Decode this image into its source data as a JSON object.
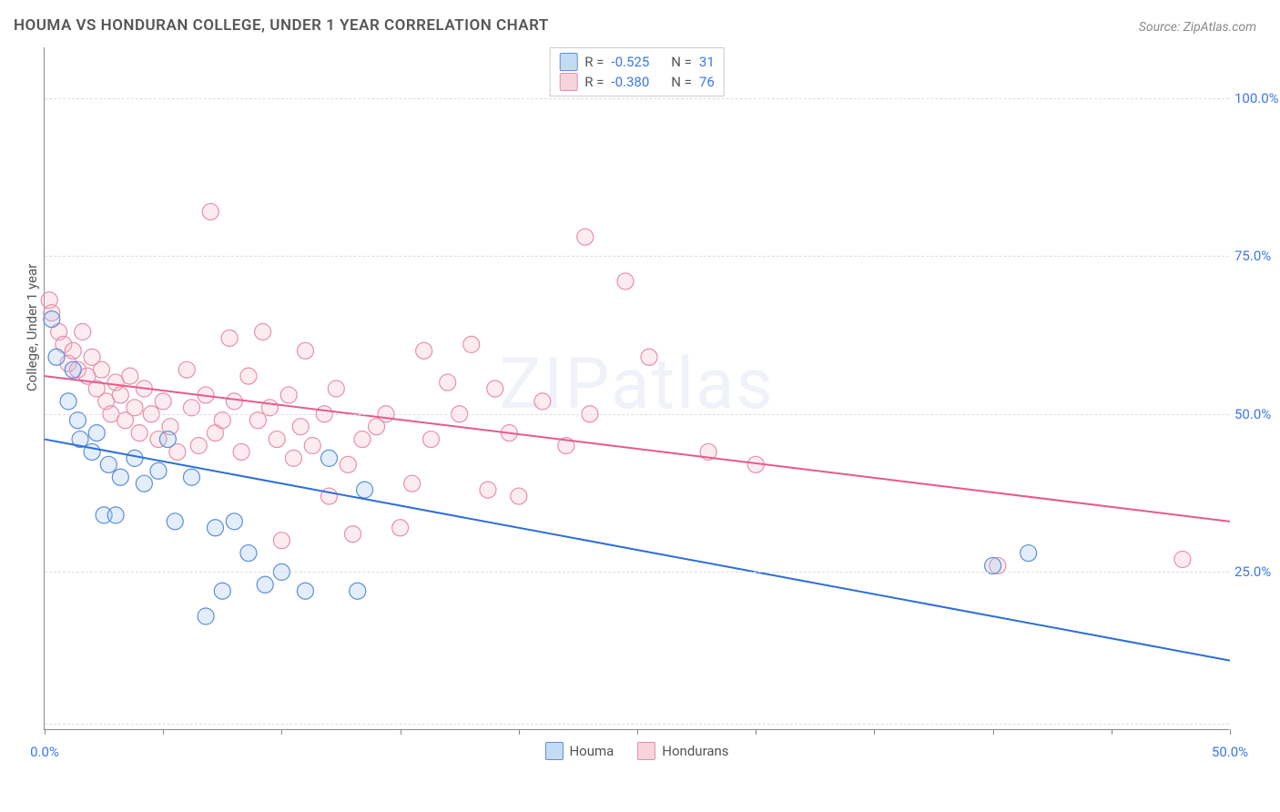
{
  "title": "HOUMA VS HONDURAN COLLEGE, UNDER 1 YEAR CORRELATION CHART",
  "source": "Source: ZipAtlas.com",
  "watermark": "ZIPatlas",
  "chart": {
    "type": "scatter",
    "y_axis_label": "College, Under 1 year",
    "xlim": [
      0,
      50
    ],
    "ylim": [
      0,
      108
    ],
    "x_ticks": [
      0,
      5,
      10,
      15,
      20,
      25,
      30,
      35,
      40,
      45,
      50
    ],
    "x_tick_labels": {
      "0": "0.0%",
      "50": "50.0%"
    },
    "y_ticks": [
      25,
      50,
      75,
      100
    ],
    "y_tick_labels": [
      "25.0%",
      "50.0%",
      "75.0%",
      "100.0%"
    ],
    "grid_y": [
      1,
      25,
      50,
      75,
      100
    ],
    "background_color": "#ffffff",
    "grid_color": "#dddddd",
    "axis_color": "#888888",
    "series": [
      {
        "name": "Houma",
        "color_fill": "#9fc3ef",
        "color_stroke": "#5b8fd6",
        "marker_r": 9,
        "R": -0.525,
        "N": 31,
        "trend": {
          "x1": 0,
          "y1": 46,
          "x2": 50,
          "y2": 11,
          "color": "#2b6fd6",
          "width": 2
        },
        "points": [
          [
            0.3,
            65
          ],
          [
            0.5,
            59
          ],
          [
            1.0,
            52
          ],
          [
            1.2,
            57
          ],
          [
            1.4,
            49
          ],
          [
            1.5,
            46
          ],
          [
            2.0,
            44
          ],
          [
            2.2,
            47
          ],
          [
            2.5,
            34
          ],
          [
            2.7,
            42
          ],
          [
            3.0,
            34
          ],
          [
            3.2,
            40
          ],
          [
            3.8,
            43
          ],
          [
            4.2,
            39
          ],
          [
            4.8,
            41
          ],
          [
            5.2,
            46
          ],
          [
            5.5,
            33
          ],
          [
            6.2,
            40
          ],
          [
            6.8,
            18
          ],
          [
            7.2,
            32
          ],
          [
            7.5,
            22
          ],
          [
            8.0,
            33
          ],
          [
            8.6,
            28
          ],
          [
            9.3,
            23
          ],
          [
            10.0,
            25
          ],
          [
            11.0,
            22
          ],
          [
            12.0,
            43
          ],
          [
            13.2,
            22
          ],
          [
            13.5,
            38
          ],
          [
            41.5,
            28
          ],
          [
            40.0,
            26
          ]
        ]
      },
      {
        "name": "Hondurans",
        "color_fill": "#f3b9c9",
        "color_stroke": "#e78fa9",
        "marker_r": 9,
        "R": -0.38,
        "N": 76,
        "trend": {
          "x1": 0,
          "y1": 56,
          "x2": 50,
          "y2": 33,
          "color": "#e75a8a",
          "width": 2
        },
        "points": [
          [
            0.2,
            68
          ],
          [
            0.3,
            66
          ],
          [
            0.6,
            63
          ],
          [
            0.8,
            61
          ],
          [
            1.0,
            58
          ],
          [
            1.2,
            60
          ],
          [
            1.4,
            57
          ],
          [
            1.6,
            63
          ],
          [
            1.8,
            56
          ],
          [
            2.0,
            59
          ],
          [
            2.2,
            54
          ],
          [
            2.4,
            57
          ],
          [
            2.6,
            52
          ],
          [
            2.8,
            50
          ],
          [
            3.0,
            55
          ],
          [
            3.2,
            53
          ],
          [
            3.4,
            49
          ],
          [
            3.6,
            56
          ],
          [
            3.8,
            51
          ],
          [
            4.0,
            47
          ],
          [
            4.2,
            54
          ],
          [
            4.5,
            50
          ],
          [
            4.8,
            46
          ],
          [
            5.0,
            52
          ],
          [
            5.3,
            48
          ],
          [
            5.6,
            44
          ],
          [
            6.0,
            57
          ],
          [
            6.2,
            51
          ],
          [
            6.5,
            45
          ],
          [
            6.8,
            53
          ],
          [
            7.0,
            82
          ],
          [
            7.2,
            47
          ],
          [
            7.5,
            49
          ],
          [
            7.8,
            62
          ],
          [
            8.0,
            52
          ],
          [
            8.3,
            44
          ],
          [
            8.6,
            56
          ],
          [
            9.0,
            49
          ],
          [
            9.2,
            63
          ],
          [
            9.5,
            51
          ],
          [
            9.8,
            46
          ],
          [
            10.0,
            30
          ],
          [
            10.3,
            53
          ],
          [
            10.5,
            43
          ],
          [
            10.8,
            48
          ],
          [
            11.0,
            60
          ],
          [
            11.3,
            45
          ],
          [
            11.8,
            50
          ],
          [
            12.0,
            37
          ],
          [
            12.3,
            54
          ],
          [
            12.8,
            42
          ],
          [
            13.0,
            31
          ],
          [
            13.4,
            46
          ],
          [
            14.0,
            48
          ],
          [
            14.4,
            50
          ],
          [
            15.0,
            32
          ],
          [
            15.5,
            39
          ],
          [
            16.0,
            60
          ],
          [
            16.3,
            46
          ],
          [
            17.0,
            55
          ],
          [
            17.5,
            50
          ],
          [
            18.0,
            61
          ],
          [
            18.7,
            38
          ],
          [
            19.0,
            54
          ],
          [
            19.6,
            47
          ],
          [
            20.0,
            37
          ],
          [
            21.0,
            52
          ],
          [
            22.0,
            45
          ],
          [
            22.8,
            78
          ],
          [
            23.0,
            50
          ],
          [
            24.5,
            71
          ],
          [
            25.5,
            59
          ],
          [
            28.0,
            44
          ],
          [
            30.0,
            42
          ],
          [
            40.2,
            26
          ],
          [
            48.0,
            27
          ]
        ]
      }
    ],
    "legend_top": {
      "border_color": "#cccccc",
      "rows": [
        {
          "swatch_fill": "#c4dbf5",
          "swatch_stroke": "#5b8fd6",
          "r_label": "R =",
          "r": "-0.525",
          "n_label": "N =",
          "n": "31"
        },
        {
          "swatch_fill": "#f9d2de",
          "swatch_stroke": "#e78fa9",
          "r_label": "R =",
          "r": "-0.380",
          "n_label": "N =",
          "n": "76"
        }
      ]
    },
    "legend_bottom": [
      {
        "swatch_fill": "#c4dbf5",
        "swatch_stroke": "#5b8fd6",
        "label": "Houma"
      },
      {
        "swatch_fill": "#f9d2de",
        "swatch_stroke": "#e78fa9",
        "label": "Hondurans"
      }
    ]
  }
}
